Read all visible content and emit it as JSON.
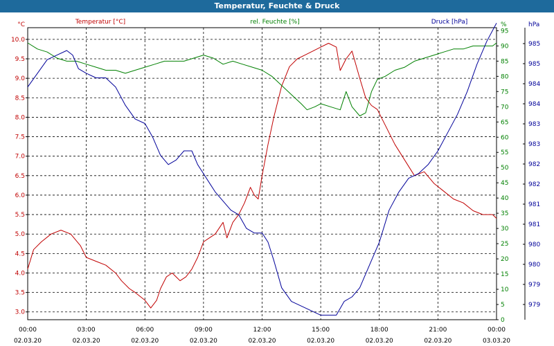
{
  "window": {
    "title": "Temperatur, Feuchte & Druck"
  },
  "chart_data": {
    "type": "line",
    "title": "Temperatur, Feuchte & Druck",
    "x_ticks": [
      {
        "time": "00:00",
        "date": "02.03.20"
      },
      {
        "time": "03:00",
        "date": "02.03.20"
      },
      {
        "time": "06:00",
        "date": "02.03.20"
      },
      {
        "time": "09:00",
        "date": "02.03.20"
      },
      {
        "time": "12:00",
        "date": "02.03.20"
      },
      {
        "time": "15:00",
        "date": "02.03.20"
      },
      {
        "time": "18:00",
        "date": "02.03.20"
      },
      {
        "time": "21:00",
        "date": "02.03.20"
      },
      {
        "time": "00:00",
        "date": "03.03.20"
      }
    ],
    "x_hours": [
      0,
      24
    ],
    "grid": true,
    "axes": {
      "temperature": {
        "unit": "°C",
        "label": "Temperatur [°C]",
        "color": "#c00000",
        "ylim": [
          2.8,
          10.3
        ],
        "ticks": [
          "10.0",
          "9.5",
          "9.0",
          "8.5",
          "8.0",
          "7.5",
          "7.0",
          "6.5",
          "6.0",
          "5.5",
          "5.0",
          "4.5",
          "4.0",
          "3.5",
          "3.0"
        ],
        "tick_values": [
          10.0,
          9.5,
          9.0,
          8.5,
          8.0,
          7.5,
          7.0,
          6.5,
          6.0,
          5.5,
          5.0,
          4.5,
          4.0,
          3.5,
          3.0
        ]
      },
      "humidity": {
        "unit": "%",
        "label": "rel. Feuchte [%]",
        "color": "#008000",
        "ylim": [
          0,
          96
        ],
        "ticks": [
          "95",
          "90",
          "85",
          "80",
          "75",
          "70",
          "65",
          "60",
          "55",
          "50",
          "45",
          "40",
          "35",
          "30",
          "25",
          "20",
          "15",
          "10",
          "5",
          "0"
        ],
        "tick_values": [
          95,
          90,
          85,
          80,
          75,
          70,
          65,
          60,
          55,
          50,
          45,
          40,
          35,
          30,
          25,
          20,
          15,
          10,
          5,
          0
        ]
      },
      "pressure": {
        "unit": "hPa",
        "label": "Druck [hPa]",
        "color": "#000099",
        "ylim": [
          978.8,
          985.2
        ],
        "ticks": [
          "985",
          "985",
          "984",
          "984",
          "983",
          "983",
          "982",
          "982",
          "981",
          "981",
          "980",
          "980",
          "979",
          "979"
        ]
      }
    },
    "series": [
      {
        "name": "Temperatur [°C]",
        "axis": "temperature",
        "color": "#c00000",
        "x": [
          0,
          0.3,
          0.7,
          1.2,
          1.7,
          2.2,
          2.7,
          3,
          3.5,
          4,
          4.5,
          4.8,
          5.2,
          5.5,
          6,
          6.3,
          6.6,
          6.8,
          7.1,
          7.4,
          7.8,
          8.1,
          8.4,
          8.7,
          9,
          9.3,
          9.6,
          10,
          10.2,
          10.5,
          10.8,
          11.1,
          11.4,
          11.6,
          11.8,
          12,
          12.3,
          12.6,
          13,
          13.4,
          13.8,
          14.2,
          14.6,
          15,
          15.4,
          15.8,
          16,
          16.3,
          16.6,
          17,
          17.3,
          17.6,
          17.9,
          18.3,
          18.8,
          19.3,
          19.8,
          20.3,
          20.8,
          21.3,
          21.8,
          22.3,
          22.8,
          23.3,
          23.8,
          24
        ],
        "values": [
          4.1,
          4.6,
          4.8,
          5.0,
          5.1,
          5.0,
          4.7,
          4.4,
          4.3,
          4.2,
          4.0,
          3.8,
          3.6,
          3.5,
          3.3,
          3.1,
          3.3,
          3.6,
          3.9,
          4.0,
          3.8,
          3.9,
          4.1,
          4.4,
          4.8,
          4.9,
          5.0,
          5.3,
          4.9,
          5.3,
          5.5,
          5.8,
          6.2,
          6.0,
          5.9,
          6.5,
          7.3,
          8.0,
          8.8,
          9.3,
          9.5,
          9.6,
          9.7,
          9.8,
          9.9,
          9.8,
          9.2,
          9.5,
          9.7,
          9.0,
          8.5,
          8.3,
          8.2,
          7.8,
          7.3,
          6.9,
          6.5,
          6.6,
          6.3,
          6.1,
          5.9,
          5.8,
          5.6,
          5.5,
          5.5,
          5.4
        ]
      },
      {
        "name": "rel. Feuchte [%]",
        "axis": "humidity",
        "color": "#008000",
        "x": [
          0,
          0.5,
          1,
          1.5,
          2,
          2.5,
          3,
          3.5,
          4,
          4.5,
          5,
          5.5,
          6,
          6.5,
          7,
          7.5,
          8,
          8.5,
          9,
          9.5,
          10,
          10.5,
          11,
          11.5,
          12,
          12.5,
          13,
          13.5,
          14,
          14.3,
          14.7,
          15,
          15.5,
          16,
          16.3,
          16.6,
          17,
          17.3,
          17.6,
          17.9,
          18.3,
          18.8,
          19.3,
          19.8,
          20.3,
          20.8,
          21.3,
          21.8,
          22.3,
          22.8,
          23.3,
          23.8,
          24
        ],
        "values": [
          91,
          89,
          88,
          86,
          85,
          85,
          84,
          83,
          82,
          82,
          81,
          82,
          83,
          84,
          85,
          85,
          85,
          86,
          87,
          86,
          84,
          85,
          84,
          83,
          82,
          80,
          77,
          74,
          71,
          69,
          70,
          71,
          70,
          69,
          75,
          70,
          67,
          68,
          75,
          79,
          80,
          82,
          83,
          85,
          86,
          87,
          88,
          89,
          89,
          90,
          90,
          90,
          91
        ]
      },
      {
        "name": "Druck [hPa]",
        "axis": "pressure",
        "color": "#000099",
        "x": [
          0,
          0.5,
          1,
          1.5,
          2,
          2.3,
          2.6,
          3,
          3.5,
          4,
          4.5,
          5,
          5.5,
          6,
          6.4,
          6.8,
          7.2,
          7.6,
          8,
          8.4,
          8.7,
          9,
          9.3,
          9.6,
          10,
          10.4,
          10.8,
          11.2,
          11.6,
          12,
          12.3,
          12.6,
          13,
          13.5,
          14,
          14.5,
          15,
          15.5,
          15.8,
          16.2,
          16.6,
          17,
          17.5,
          18,
          18.5,
          19,
          19.5,
          20,
          20.5,
          21,
          21.5,
          22,
          22.5,
          23,
          23.5,
          24
        ],
        "values": [
          983.9,
          984.2,
          984.5,
          984.6,
          984.7,
          984.6,
          984.3,
          984.2,
          984.1,
          984.1,
          983.9,
          983.5,
          983.2,
          983.1,
          982.8,
          982.4,
          982.2,
          982.3,
          982.5,
          982.5,
          982.2,
          982.0,
          981.8,
          981.6,
          981.4,
          981.2,
          981.1,
          980.8,
          980.7,
          980.7,
          980.5,
          980.1,
          979.5,
          979.2,
          979.1,
          979.0,
          978.9,
          978.9,
          978.9,
          979.2,
          979.3,
          979.5,
          980.0,
          980.5,
          981.2,
          981.6,
          981.9,
          982.0,
          982.2,
          982.5,
          982.9,
          983.3,
          983.8,
          984.4,
          984.9,
          985.3
        ]
      }
    ]
  }
}
